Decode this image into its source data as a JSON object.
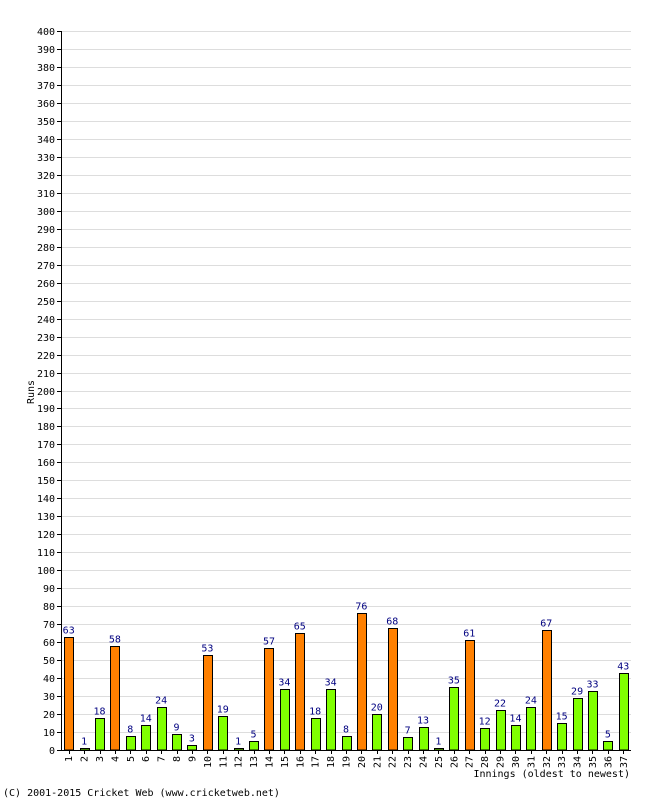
{
  "chart_data": {
    "type": "bar",
    "ylabel": "Runs",
    "xlabel": "Innings (oldest to newest)",
    "ylim": [
      0,
      400
    ],
    "ytick_step": 10,
    "grid": true,
    "categories": [
      "1",
      "2",
      "3",
      "4",
      "5",
      "6",
      "7",
      "8",
      "9",
      "10",
      "11",
      "12",
      "13",
      "14",
      "15",
      "16",
      "17",
      "18",
      "19",
      "20",
      "21",
      "22",
      "23",
      "24",
      "25",
      "26",
      "27",
      "28",
      "29",
      "30",
      "31",
      "32",
      "33",
      "34",
      "35",
      "36",
      "37"
    ],
    "values": [
      63,
      1,
      18,
      58,
      8,
      14,
      24,
      9,
      3,
      53,
      19,
      1,
      5,
      57,
      34,
      65,
      18,
      34,
      8,
      76,
      20,
      68,
      7,
      13,
      1,
      35,
      61,
      12,
      22,
      14,
      24,
      67,
      15,
      29,
      33,
      5,
      43
    ],
    "highlight_threshold": 50,
    "colors": {
      "low": "#80ff00",
      "high": "#ff8000",
      "outline": "#000000",
      "grid": "#dddddd",
      "value_label": "#000080"
    }
  },
  "footer": {
    "copyright": "(C) 2001-2015 Cricket Web (www.cricketweb.net)"
  }
}
